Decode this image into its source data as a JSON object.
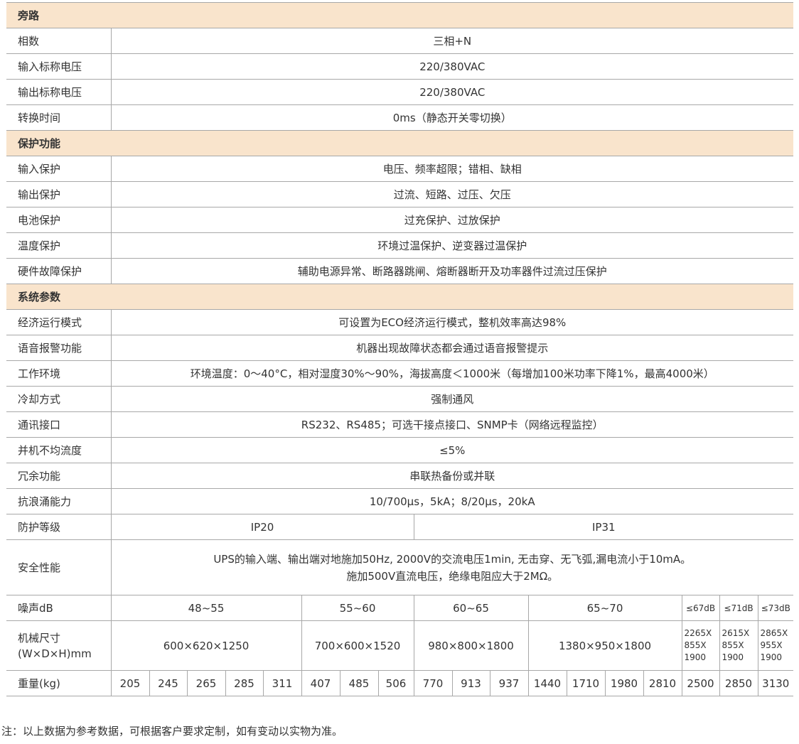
{
  "colors": {
    "section_header_bg": "#f9e4cc",
    "border": "#a8a8a8",
    "text": "#333333"
  },
  "sections": [
    {
      "title": "旁路",
      "rows": [
        {
          "label": "相数",
          "value": "三相+N"
        },
        {
          "label": "输入标称电压",
          "value": "220/380VAC"
        },
        {
          "label": "输出标称电压",
          "value": "220/380VAC"
        },
        {
          "label": "转换时间",
          "value": "0ms（静态开关零切换）"
        }
      ]
    },
    {
      "title": "保护功能",
      "rows": [
        {
          "label": "输入保护",
          "value": "电压、频率超限；错相、缺相"
        },
        {
          "label": "输出保护",
          "value": "过流、短路、过压、欠压"
        },
        {
          "label": "电池保护",
          "value": "过充保护、过放保护"
        },
        {
          "label": "温度保护",
          "value": "环境过温保护、逆变器过温保护"
        },
        {
          "label": "硬件故障保护",
          "value": "辅助电源异常、断路器跳闸、熔断器断开及功率器件过流过压保护"
        }
      ]
    },
    {
      "title": "系统参数",
      "rows": [
        {
          "label": "经济运行模式",
          "value": "可设置为ECO经济运行模式，整机效率高达98%"
        },
        {
          "label": "语音报警功能",
          "value": "机器出现故障状态都会通过语音报警提示"
        },
        {
          "label": "工作环境",
          "value": "环境温度：0～40°C，相对湿度30%～90%，海拔高度＜1000米（每增加100米功率下降1%，最高4000米）"
        },
        {
          "label": "冷却方式",
          "value": "强制通风"
        },
        {
          "label": "通讯接口",
          "value": "RS232、RS485；可选干接点接口、SNMP卡（网络远程监控）"
        },
        {
          "label": "并机不均流度",
          "value": "≤5%"
        },
        {
          "label": "冗余功能",
          "value": "串联热备份或并联"
        },
        {
          "label": "抗浪涌能力",
          "value": "10/700μs，5kA；8/20μs，20kA"
        }
      ]
    }
  ],
  "protection_level": {
    "label": "防护等级",
    "values": [
      "IP20",
      "IP31"
    ]
  },
  "safety": {
    "label": "安全性能",
    "line1": "UPS的输入端、输出端对地施加50Hz, 2000V的交流电压1min, 无击穿、无飞弧,漏电流小于10mA。",
    "line2": "施加500V直流电压，绝缘电阻应大于2MΩ。"
  },
  "noise": {
    "label": "噪声dB",
    "values": [
      "48~55",
      "55~60",
      "60~65",
      "65~70",
      "≤67dB",
      "≤71dB",
      "≤73dB"
    ]
  },
  "dimensions": {
    "label_line1": "机械尺寸",
    "label_line2": "(W×D×H)mm",
    "values": [
      "600×620×1250",
      "700×600×1520",
      "980×800×1800",
      "1380×950×1800",
      "2265X 855X 1900",
      "2615X 855X 1900",
      "2865X 955X 1900"
    ]
  },
  "weight": {
    "label": "重量(kg)",
    "values": [
      "205",
      "245",
      "265",
      "285",
      "311",
      "407",
      "485",
      "506",
      "770",
      "913",
      "937",
      "1440",
      "1710",
      "1980",
      "2810",
      "2500",
      "2850",
      "3130"
    ]
  },
  "note": "注：以上数据为参考数据，可根据客户要求定制，如有变动以实物为准。"
}
